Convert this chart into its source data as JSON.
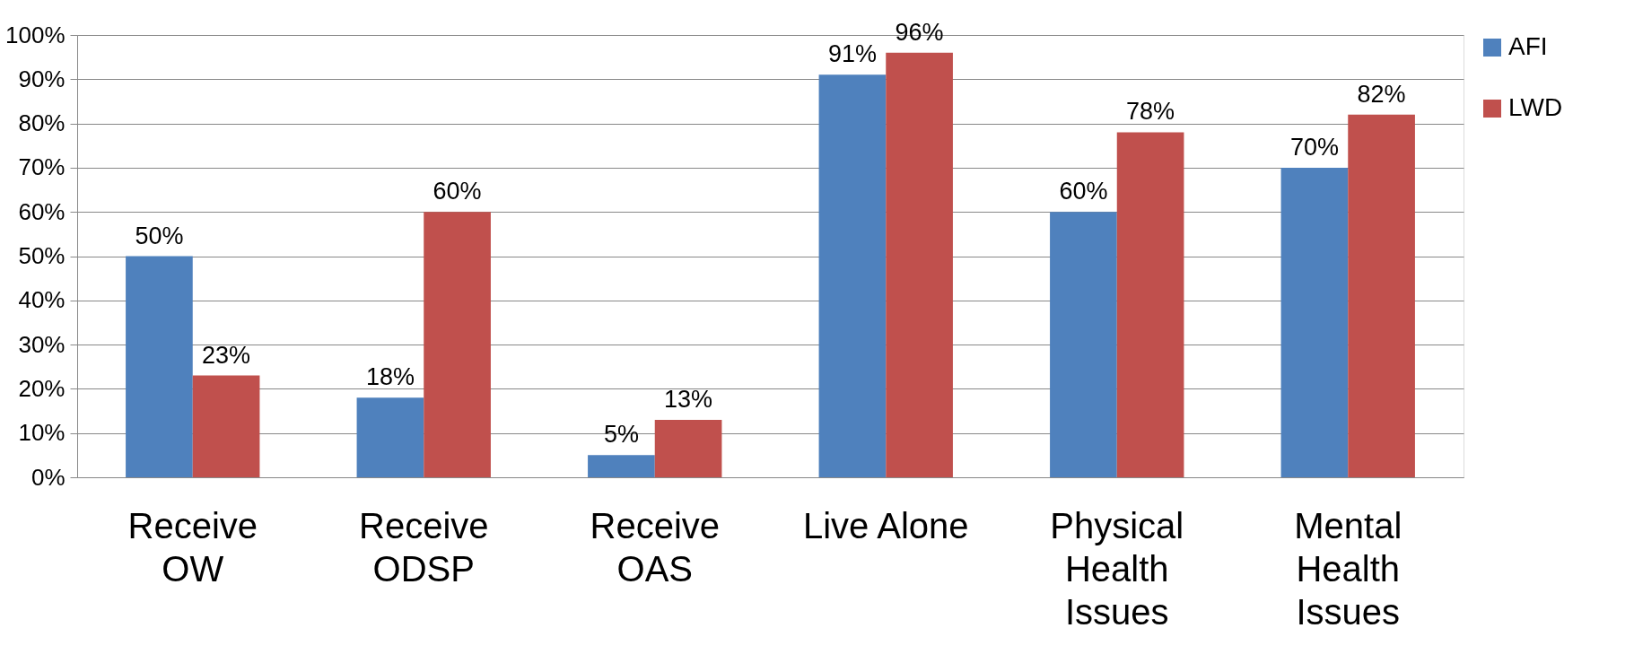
{
  "chart_data": {
    "type": "bar",
    "categories": [
      "Receive\nOW",
      "Receive\nODSP",
      "Receive\nOAS",
      "Live Alone",
      "Physical\nHealth\nIssues",
      "Mental\nHealth\nIssues"
    ],
    "series": [
      {
        "name": "AFI",
        "color": "#4f81bd",
        "values": [
          50,
          18,
          5,
          91,
          60,
          70
        ],
        "value_labels": [
          "50%",
          "18%",
          "5%",
          "91%",
          "60%",
          "70%"
        ]
      },
      {
        "name": "LWD",
        "color": "#c0504d",
        "values": [
          23,
          60,
          13,
          96,
          78,
          82
        ],
        "value_labels": [
          "23%",
          "60%",
          "13%",
          "96%",
          "78%",
          "82%"
        ]
      }
    ],
    "ylim": [
      0,
      100
    ],
    "yticks": [
      {
        "value": 0,
        "label": "0%"
      },
      {
        "value": 10,
        "label": "10%"
      },
      {
        "value": 20,
        "label": "20%"
      },
      {
        "value": 30,
        "label": "30%"
      },
      {
        "value": 40,
        "label": "40%"
      },
      {
        "value": 50,
        "label": "50%"
      },
      {
        "value": 60,
        "label": "60%"
      },
      {
        "value": 70,
        "label": "70%"
      },
      {
        "value": 80,
        "label": "80%"
      },
      {
        "value": 90,
        "label": "90%"
      },
      {
        "value": 100,
        "label": "100%"
      }
    ],
    "grid": "y",
    "legend": "right"
  }
}
